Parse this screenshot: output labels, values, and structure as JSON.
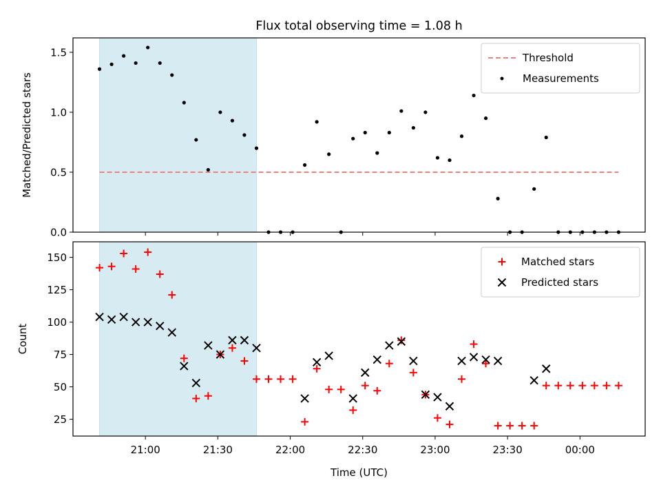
{
  "chart_data": [
    {
      "type": "scatter",
      "title": "Flux total observing time = 1.08 h",
      "xlabel": "",
      "ylabel": "Matched/Predicted stars",
      "xlim": [
        "20:30",
        "00:27"
      ],
      "ylim": [
        0,
        1.62
      ],
      "yticks": [
        0.0,
        0.5,
        1.0,
        1.5
      ],
      "ytick_labels": [
        "0.0",
        "0.5",
        "1.0",
        "1.5"
      ],
      "legend_position": "top-right",
      "highlight_span": [
        "20:41",
        "21:46"
      ],
      "threshold": {
        "name": "Threshold",
        "y": 0.5,
        "x_range": [
          "20:41",
          "00:16"
        ],
        "color": "#f08080"
      },
      "series": [
        {
          "name": "Measurements",
          "color": "#000000",
          "x": [
            "20:41",
            "20:46",
            "20:51",
            "20:56",
            "21:01",
            "21:06",
            "21:11",
            "21:16",
            "21:21",
            "21:26",
            "21:31",
            "21:36",
            "21:41",
            "21:46",
            "21:51",
            "21:56",
            "22:01",
            "22:06",
            "22:11",
            "22:16",
            "22:21",
            "22:26",
            "22:31",
            "22:36",
            "22:41",
            "22:46",
            "22:51",
            "22:56",
            "23:01",
            "23:06",
            "23:11",
            "23:16",
            "23:21",
            "23:26",
            "23:31",
            "23:36",
            "23:41",
            "23:46",
            "23:51",
            "23:56",
            "00:01",
            "00:06",
            "00:11",
            "00:16"
          ],
          "values": [
            1.36,
            1.4,
            1.47,
            1.41,
            1.54,
            1.41,
            1.31,
            1.08,
            0.77,
            0.52,
            1.0,
            0.93,
            0.81,
            0.7,
            0.0,
            0.0,
            0.0,
            0.56,
            0.92,
            0.65,
            0.0,
            0.78,
            0.83,
            0.66,
            0.83,
            1.01,
            0.87,
            1.0,
            0.62,
            0.6,
            0.8,
            1.14,
            0.95,
            0.28,
            0.0,
            0.0,
            0.36,
            0.79,
            0.0,
            0.0,
            0.0,
            0.0,
            0.0,
            0.0
          ]
        }
      ]
    },
    {
      "type": "scatter",
      "title": "",
      "xlabel": "Time (UTC)",
      "ylabel": "Count",
      "xlim": [
        "20:30",
        "00:27"
      ],
      "ylim": [
        12,
        162
      ],
      "yticks": [
        25,
        50,
        75,
        100,
        125,
        150
      ],
      "ytick_labels": [
        "25",
        "50",
        "75",
        "100",
        "125",
        "150"
      ],
      "xticks": [
        "21:00",
        "21:30",
        "22:00",
        "22:30",
        "23:00",
        "23:30",
        "00:00"
      ],
      "xtick_labels": [
        "21:00",
        "21:30",
        "22:00",
        "22:30",
        "23:00",
        "23:30",
        "00:00"
      ],
      "legend_position": "top-right",
      "highlight_span": [
        "20:41",
        "21:46"
      ],
      "series": [
        {
          "name": "Matched stars",
          "color": "#ff0000",
          "marker": "plus",
          "x": [
            "20:41",
            "20:46",
            "20:51",
            "20:56",
            "21:01",
            "21:06",
            "21:11",
            "21:16",
            "21:21",
            "21:26",
            "21:31",
            "21:36",
            "21:41",
            "21:46",
            "21:51",
            "21:56",
            "22:01",
            "22:06",
            "22:11",
            "22:16",
            "22:21",
            "22:26",
            "22:31",
            "22:36",
            "22:41",
            "22:46",
            "22:51",
            "22:56",
            "23:01",
            "23:06",
            "23:11",
            "23:16",
            "23:21",
            "23:26",
            "23:31",
            "23:36",
            "23:41",
            "23:46",
            "23:51",
            "23:56",
            "00:01",
            "00:06",
            "00:11",
            "00:16"
          ],
          "values": [
            142,
            143,
            153,
            141,
            154,
            137,
            121,
            72,
            41,
            43,
            75,
            80,
            70,
            56,
            56,
            56,
            56,
            23,
            64,
            48,
            48,
            32,
            51,
            47,
            68,
            86,
            61,
            44,
            26,
            21,
            56,
            83,
            68,
            20,
            20,
            20,
            20,
            51,
            51,
            51,
            51,
            51,
            51,
            51
          ]
        },
        {
          "name": "Predicted stars",
          "color": "#000000",
          "marker": "x",
          "x": [
            "20:41",
            "20:46",
            "20:51",
            "20:56",
            "21:01",
            "21:06",
            "21:11",
            "21:16",
            "21:21",
            "21:26",
            "21:31",
            "21:36",
            "21:41",
            "21:46",
            "22:06",
            "22:11",
            "22:16",
            "22:26",
            "22:31",
            "22:36",
            "22:41",
            "22:46",
            "22:51",
            "22:56",
            "23:01",
            "23:06",
            "23:11",
            "23:16",
            "23:21",
            "23:26",
            "23:41",
            "23:46"
          ],
          "values": [
            104,
            102,
            104,
            100,
            100,
            97,
            92,
            66,
            53,
            82,
            75,
            86,
            86,
            80,
            41,
            69,
            74,
            41,
            61,
            71,
            82,
            85,
            70,
            44,
            42,
            35,
            70,
            73,
            71,
            70,
            55,
            64
          ]
        }
      ]
    }
  ]
}
